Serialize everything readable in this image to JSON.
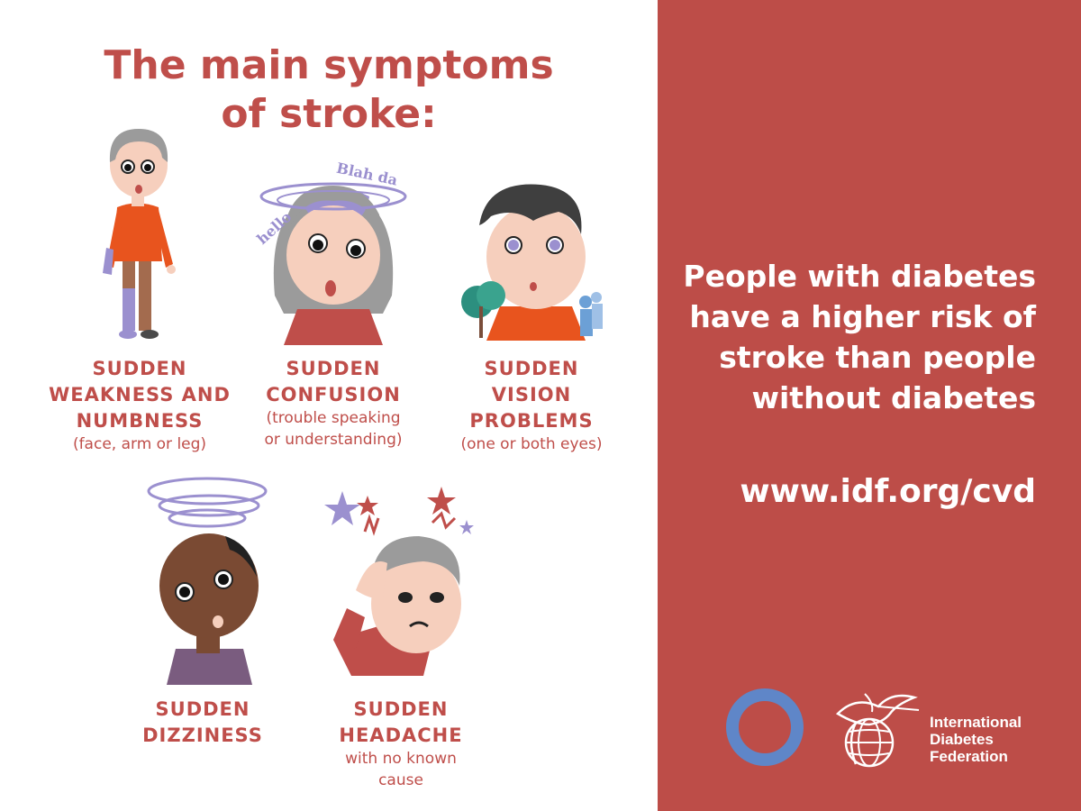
{
  "colors": {
    "accent": "#bf4e4a",
    "panel": "#bd4d48",
    "ring": "#5f86c8",
    "lavender": "#9b90cf",
    "orange": "#e8541e"
  },
  "title": {
    "line1": "The main symptoms",
    "line2": "of stroke:"
  },
  "symptoms": [
    {
      "title_lines": [
        "SUDDEN",
        "WEAKNESS AND",
        "NUMBNESS"
      ],
      "subtitle_lines": [
        "(face, arm or leg)"
      ]
    },
    {
      "title_lines": [
        "SUDDEN",
        "CONFUSION"
      ],
      "subtitle_lines": [
        "(trouble speaking",
        "or understanding)"
      ],
      "speech": [
        "hello",
        "Blah da"
      ]
    },
    {
      "title_lines": [
        "SUDDEN",
        "VISION",
        "PROBLEMS"
      ],
      "subtitle_lines": [
        "(one or both eyes)"
      ]
    },
    {
      "title_lines": [
        "SUDDEN",
        "DIZZINESS"
      ],
      "subtitle_lines": []
    },
    {
      "title_lines": [
        "SUDDEN",
        "HEADACHE"
      ],
      "subtitle_lines": [
        "with no known",
        "cause"
      ]
    }
  ],
  "panel": {
    "message_lines": [
      "People with diabetes",
      "have a higher risk of",
      "stroke than people",
      "without diabetes"
    ],
    "url": "www.idf.org/cvd",
    "logo_lines": [
      "International",
      "Diabetes",
      "Federation"
    ]
  }
}
